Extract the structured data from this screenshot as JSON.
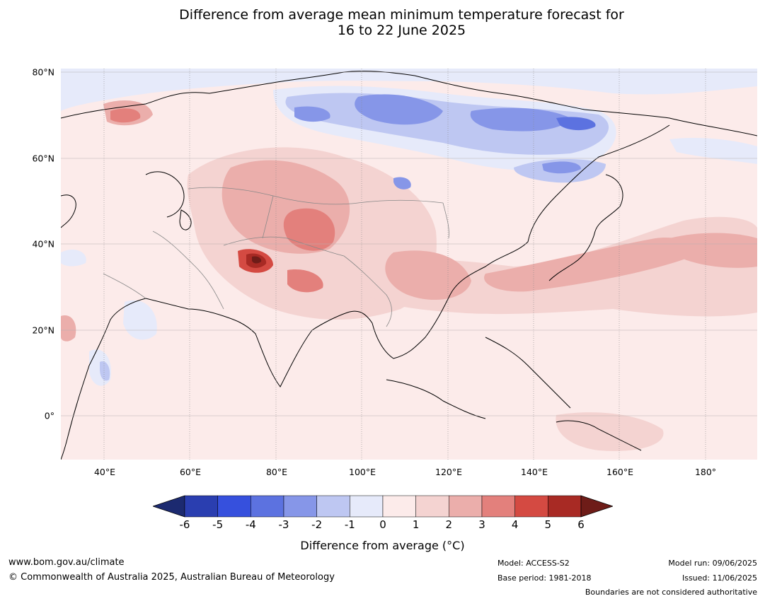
{
  "title_line1": "Difference from average mean minimum temperature forecast for",
  "title_line2": "16 to 22 June 2025",
  "lat_labels": [
    "80°N",
    "60°N",
    "40°N",
    "20°N",
    "0°"
  ],
  "lon_labels": [
    "40°E",
    "60°E",
    "80°E",
    "100°E",
    "120°E",
    "140°E",
    "160°E",
    "180°"
  ],
  "colorbar": {
    "ticks": [
      "-6",
      "-5",
      "-4",
      "-3",
      "-2",
      "-1",
      "0",
      "1",
      "2",
      "3",
      "4",
      "5",
      "6"
    ],
    "colors": [
      "#1c2a70",
      "#2a3eb0",
      "#3650dd",
      "#5c72e0",
      "#8696e8",
      "#bec7f2",
      "#e6eafa",
      "#fcebea",
      "#f4d3d1",
      "#ebaeab",
      "#e3807c",
      "#d44a42",
      "#a82a24",
      "#6e1c18"
    ],
    "label": "Difference from average (°C)"
  },
  "footer": {
    "website": "www.bom.gov.au/climate",
    "copyright": "© Commonwealth of Australia 2025, Australian Bureau of Meteorology",
    "model": "Model: ACCESS-S2",
    "base_period": "Base period: 1981-2018",
    "model_run": "Model run: 09/06/2025",
    "issued": "Issued: 11/06/2025",
    "disclaimer": "Boundaries are not considered authoritative"
  }
}
